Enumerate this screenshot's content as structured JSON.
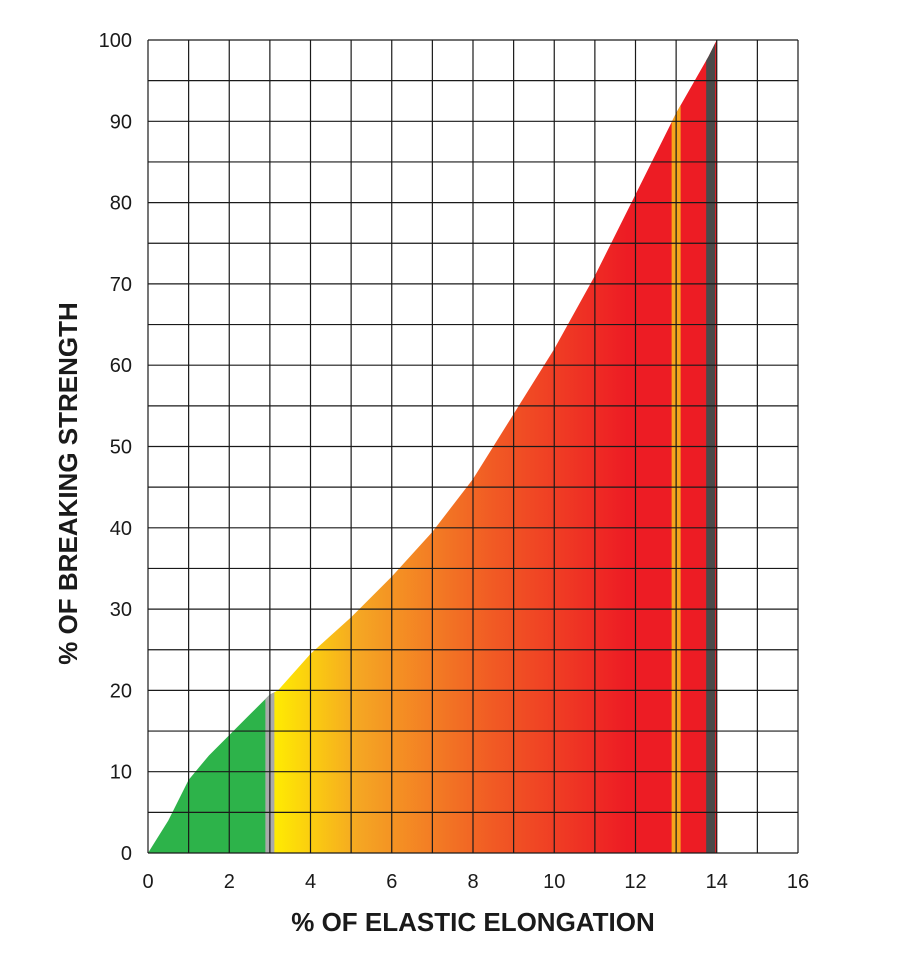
{
  "chart_data": {
    "type": "area",
    "title": "",
    "xlabel": "% OF ELASTIC ELONGATION",
    "ylabel": "% OF BREAKING STRENGTH",
    "xlim": [
      0,
      16
    ],
    "ylim": [
      0,
      100
    ],
    "xticks": [
      0,
      2,
      4,
      6,
      8,
      10,
      12,
      14,
      16
    ],
    "yticks": [
      0,
      10,
      20,
      30,
      40,
      50,
      60,
      70,
      80,
      90,
      100
    ],
    "grid": true,
    "series": [
      {
        "x": [
          0,
          0.5,
          1,
          1.5,
          2,
          2.5,
          3,
          3.2,
          4,
          5,
          6,
          7,
          8,
          9,
          10,
          11,
          12,
          13,
          13.8,
          14
        ],
        "values": [
          0,
          4,
          9,
          12,
          14.5,
          17,
          19.5,
          20,
          24.5,
          29,
          34,
          39.5,
          46,
          54,
          62,
          71,
          81,
          91,
          98,
          100
        ]
      }
    ],
    "zones": [
      {
        "x_from": 0,
        "x_to": 3.0,
        "color": "#2db34a"
      },
      {
        "x_from": 3.0,
        "x_to": 14,
        "gradient": [
          "#ffef00",
          "#f5a623",
          "#f15a24",
          "#ed1c24",
          "#ed1c24"
        ]
      }
    ],
    "markers": [
      {
        "x": 3.0,
        "color": "#aaaaaa"
      },
      {
        "x": 13.0,
        "color": "#f7a51c"
      },
      {
        "x": 13.85,
        "color": "#4a4a4a"
      }
    ]
  }
}
